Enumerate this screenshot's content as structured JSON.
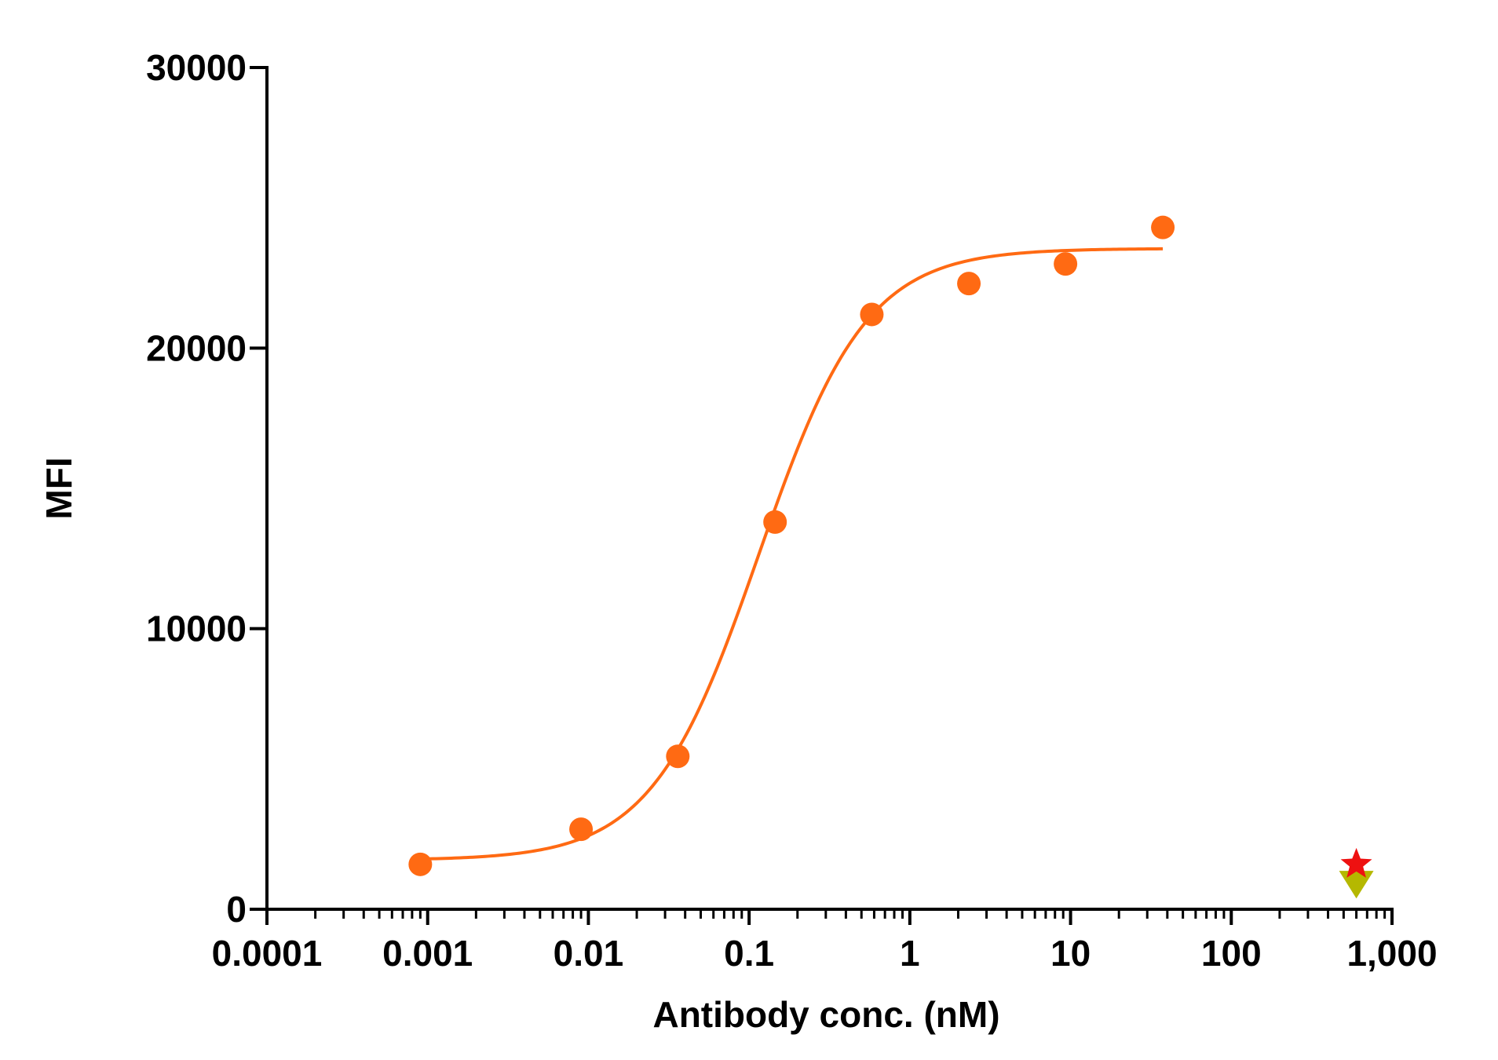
{
  "chart_data": {
    "type": "scatter",
    "xlabel": "Antibody conc. (nM)",
    "ylabel": "MFI",
    "x_scale": "log",
    "xlim": [
      0.0001,
      1000
    ],
    "ylim": [
      0,
      30000
    ],
    "x_ticks": [
      0.0001,
      0.001,
      0.01,
      0.1,
      1,
      10,
      100,
      1000
    ],
    "x_tick_labels": [
      "0.0001",
      "0.001",
      "0.01",
      "0.1",
      "1",
      "10",
      "100",
      "1,000"
    ],
    "y_ticks": [
      0,
      10000,
      20000,
      30000
    ],
    "y_tick_labels": [
      "0",
      "10000",
      "20000",
      "30000"
    ],
    "grid": false,
    "colors": {
      "series": "#ff6a13",
      "star": "#ee1111",
      "triangle": "#b5b800",
      "axis": "#000000"
    },
    "series": [
      {
        "marker": "circle",
        "x": [
          0.0009,
          0.009,
          0.036,
          0.145,
          0.58,
          2.33,
          9.3,
          37.5
        ],
        "y": [
          1600,
          2850,
          5450,
          13800,
          21200,
          22300,
          23000,
          24300
        ]
      }
    ],
    "fit": {
      "model": "4PL",
      "bottom": 1750,
      "top": 23550,
      "ec50": 0.115,
      "hill": 1.3,
      "x_range": [
        0.0009,
        37.5
      ]
    },
    "extra_markers": [
      {
        "marker": "triangle-down",
        "x": 600,
        "y": 1000
      },
      {
        "marker": "star",
        "x": 600,
        "y": 1600
      }
    ]
  }
}
